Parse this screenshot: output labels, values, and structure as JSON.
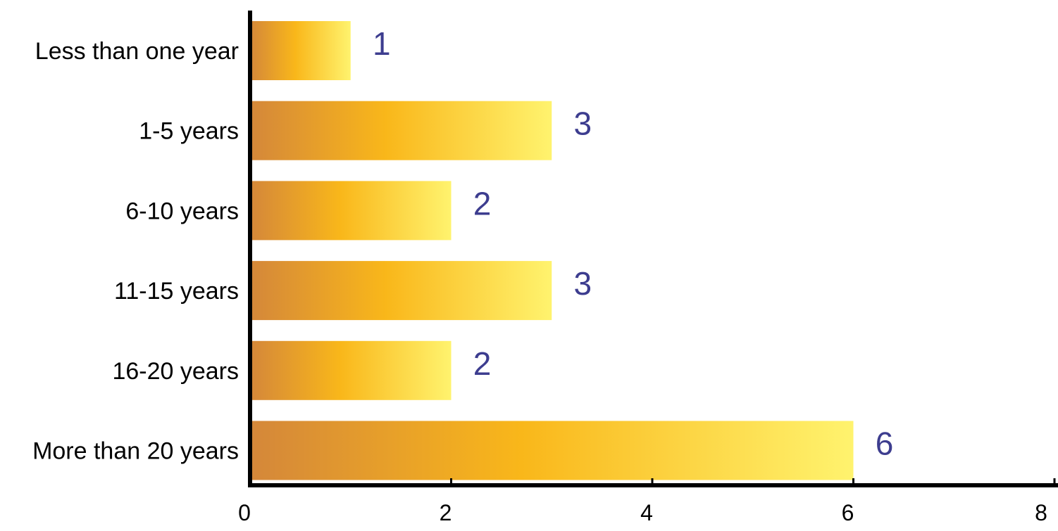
{
  "chart_data": {
    "type": "bar",
    "orientation": "horizontal",
    "categories": [
      "Less than one year",
      "1-5 years",
      "6-10 years",
      "11-15 years",
      "16-20 years",
      "More than 20 years"
    ],
    "values": [
      1,
      3,
      2,
      3,
      2,
      6
    ],
    "data_labels": [
      "1",
      "3",
      "2",
      "3",
      "2",
      "6"
    ],
    "xlim": [
      0,
      8
    ],
    "x_ticks": [
      0,
      2,
      4,
      6,
      8
    ],
    "x_tick_labels": [
      "0",
      "2",
      "4",
      "6",
      "8"
    ],
    "title": "",
    "xlabel": "",
    "ylabel": "",
    "grid": false,
    "legend": "none",
    "colors": {
      "bar_gradient_start": "#D4873A",
      "bar_gradient_mid": "#F9B71A",
      "bar_gradient_end": "#FFF36E",
      "data_label": "#3D3D8F",
      "axis": "#000000"
    }
  }
}
